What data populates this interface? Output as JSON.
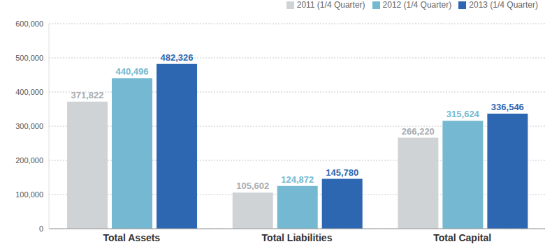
{
  "chart_data": {
    "type": "bar",
    "categories": [
      "Total Assets",
      "Total Liabilities",
      "Total Capital"
    ],
    "series": [
      {
        "name": "2011 (1/4 Quarter)",
        "color": "#d0d3d6",
        "values": [
          371822,
          105602,
          266220
        ],
        "value_labels": [
          "371,822",
          "105,602",
          "266,220"
        ]
      },
      {
        "name": "2012 (1/4 Quarter)",
        "color": "#74b9d1",
        "values": [
          440496,
          124872,
          315624
        ],
        "value_labels": [
          "440,496",
          "124,872",
          "315,624"
        ]
      },
      {
        "name": "2013 (1/4 Quarter)",
        "color": "#2e67b1",
        "values": [
          482326,
          145780,
          336546
        ],
        "value_labels": [
          "482,326",
          "145,780",
          "336,546"
        ]
      }
    ],
    "ylim": [
      0,
      600000
    ],
    "yticks": [
      0,
      {
        "value": 100000,
        "label": "100,000"
      },
      {
        "value": 200000,
        "label": "200,000"
      },
      {
        "value": 300000,
        "label": "300,000"
      },
      {
        "value": 400000,
        "label": "400,000"
      },
      {
        "value": 500000,
        "label": "500,000"
      },
      {
        "value": 600000,
        "label": "600,000"
      }
    ],
    "grid": true,
    "legend": "top-right",
    "data_labels": true
  }
}
